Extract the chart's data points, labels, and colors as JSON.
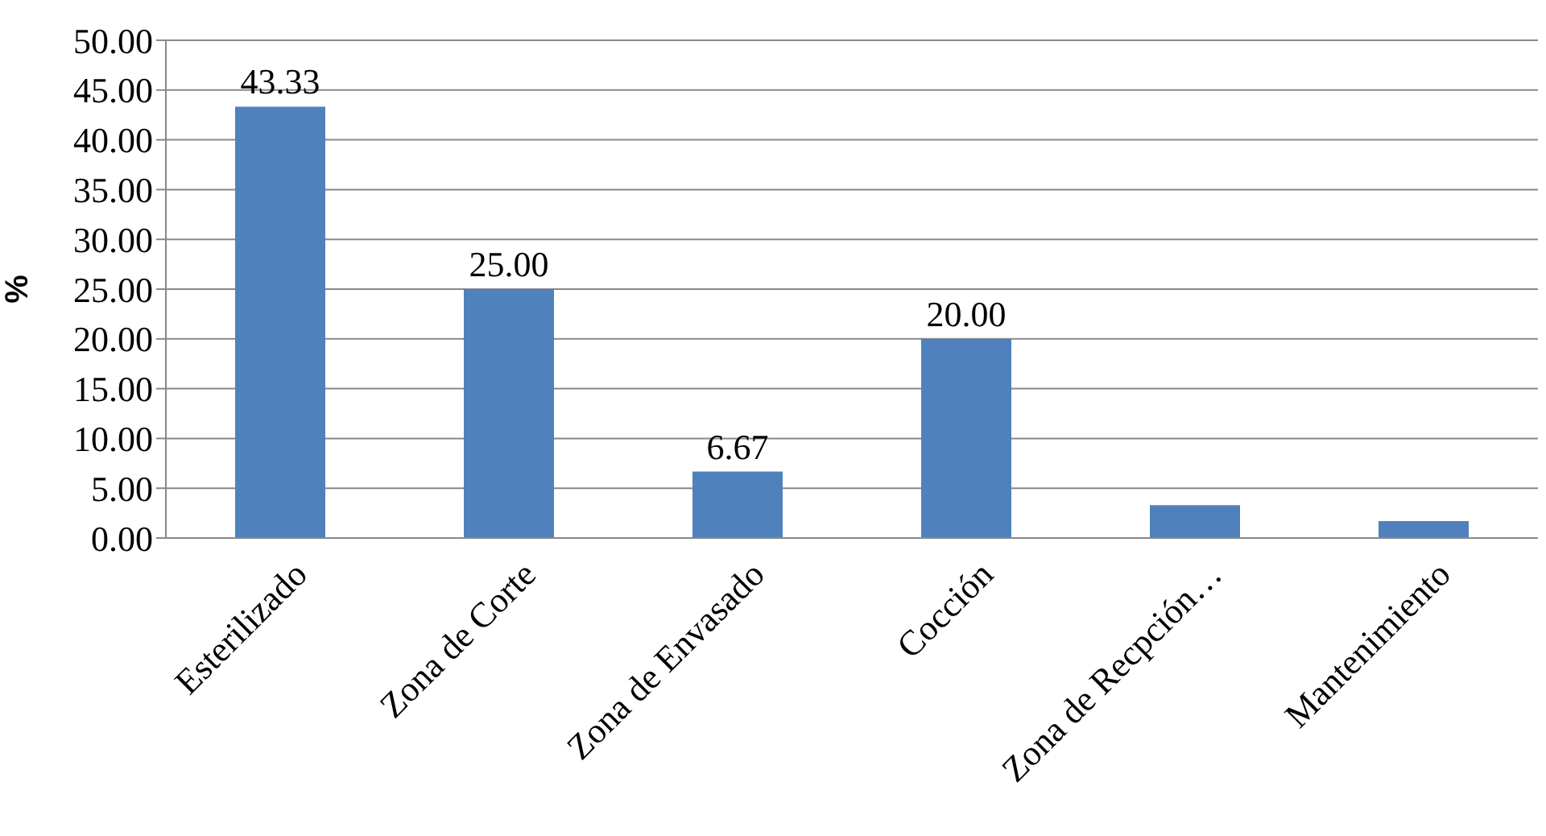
{
  "chart_data": {
    "type": "bar",
    "ylabel": "%",
    "categories": [
      "Esterilizado",
      "Zona de Corte",
      "Zona de Envasado",
      "Cocción",
      "Zona de Recpción…",
      "Mantenimiento"
    ],
    "values": [
      43.33,
      25.0,
      6.67,
      20.0,
      3.3,
      1.7
    ],
    "value_labels": [
      "43.33",
      "25.00",
      "6.67",
      "20.00",
      null,
      null
    ],
    "color": "#4f81bd",
    "ylim": [
      0,
      50
    ],
    "yticks": [
      {
        "value": 0,
        "label": "0.00"
      },
      {
        "value": 5,
        "label": "5.00"
      },
      {
        "value": 10,
        "label": "10.00"
      },
      {
        "value": 15,
        "label": "15.00"
      },
      {
        "value": 20,
        "label": "20.00"
      },
      {
        "value": 25,
        "label": "25.00"
      },
      {
        "value": 30,
        "label": "30.00"
      },
      {
        "value": 35,
        "label": "35.00"
      },
      {
        "value": 40,
        "label": "40.00"
      },
      {
        "value": 45,
        "label": "45.00"
      },
      {
        "value": 50,
        "label": "50.00"
      }
    ],
    "grid": "y"
  }
}
